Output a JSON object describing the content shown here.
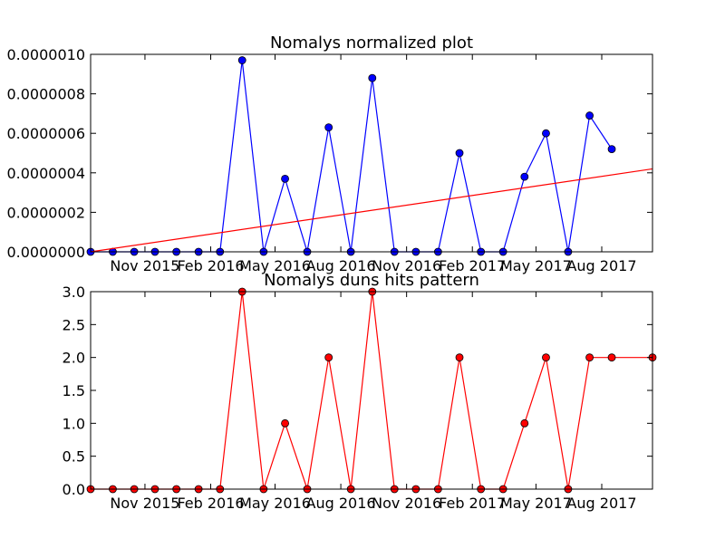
{
  "chart_data": [
    {
      "type": "line",
      "title": "Nomalys normalized plot",
      "xlabel": "",
      "ylabel": "",
      "ylim": [
        0,
        1e-06
      ],
      "yticks": [
        "0.0000000",
        "0.0000002",
        "0.0000004",
        "0.0000006",
        "0.0000008",
        "0.0000010"
      ],
      "ytick_values": [
        0,
        2e-07,
        4e-07,
        6e-07,
        8e-07,
        1e-06
      ],
      "xlim": [
        "2015-08-17",
        "2017-10-11"
      ],
      "xticks": [
        "Nov 2015",
        "Feb 2016",
        "May 2016",
        "Aug 2016",
        "Nov 2016",
        "Feb 2017",
        "May 2017",
        "Aug 2017"
      ],
      "xtick_dates": [
        "2015-11-01",
        "2016-02-01",
        "2016-05-01",
        "2016-08-01",
        "2016-11-01",
        "2017-02-01",
        "2017-05-01",
        "2017-08-01"
      ],
      "grid": false,
      "series": [
        {
          "color": "#0000ff",
          "marker": "circle",
          "x": [
            "2015-08-17",
            "2015-09-17",
            "2015-10-17",
            "2015-11-15",
            "2015-12-15",
            "2016-01-15",
            "2016-02-14",
            "2016-03-16",
            "2016-04-15",
            "2016-05-15",
            "2016-06-15",
            "2016-07-15",
            "2016-08-15",
            "2016-09-14",
            "2016-10-15",
            "2016-11-14",
            "2016-12-15",
            "2017-01-14",
            "2017-02-13",
            "2017-03-16",
            "2017-04-15",
            "2017-05-15",
            "2017-06-15",
            "2017-07-15",
            "2017-08-15"
          ],
          "values": [
            0,
            0,
            0,
            0,
            0,
            0,
            0,
            9.7e-07,
            0,
            3.7e-07,
            0,
            6.3e-07,
            0,
            8.8e-07,
            0,
            0,
            0,
            5e-07,
            0,
            0,
            3.8e-07,
            6e-07,
            0,
            6.9e-07,
            5.2e-07
          ]
        },
        {
          "color": "#ff0000",
          "marker": "none",
          "x": [
            "2015-08-17",
            "2017-10-11"
          ],
          "values": [
            0,
            4.2e-07
          ]
        }
      ]
    },
    {
      "type": "line",
      "title": "Nomalys duns hits pattern",
      "xlabel": "",
      "ylabel": "",
      "ylim": [
        0,
        3
      ],
      "yticks": [
        "0.0",
        "0.5",
        "1.0",
        "1.5",
        "2.0",
        "2.5",
        "3.0"
      ],
      "ytick_values": [
        0,
        0.5,
        1,
        1.5,
        2,
        2.5,
        3
      ],
      "xlim": [
        "2015-08-17",
        "2017-10-11"
      ],
      "xticks": [
        "Nov 2015",
        "Feb 2016",
        "May 2016",
        "Aug 2016",
        "Nov 2016",
        "Feb 2017",
        "May 2017",
        "Aug 2017"
      ],
      "xtick_dates": [
        "2015-11-01",
        "2016-02-01",
        "2016-05-01",
        "2016-08-01",
        "2016-11-01",
        "2017-02-01",
        "2017-05-01",
        "2017-08-01"
      ],
      "grid": false,
      "series": [
        {
          "color": "#ff0000",
          "marker": "circle",
          "x": [
            "2015-08-17",
            "2015-09-17",
            "2015-10-17",
            "2015-11-15",
            "2015-12-15",
            "2016-01-15",
            "2016-02-14",
            "2016-03-16",
            "2016-04-15",
            "2016-05-15",
            "2016-06-15",
            "2016-07-15",
            "2016-08-15",
            "2016-09-14",
            "2016-10-15",
            "2016-11-14",
            "2016-12-15",
            "2017-01-14",
            "2017-02-13",
            "2017-03-16",
            "2017-04-15",
            "2017-05-15",
            "2017-06-15",
            "2017-07-15",
            "2017-08-15",
            "2017-10-11"
          ],
          "values": [
            0,
            0,
            0,
            0,
            0,
            0,
            0,
            3,
            0,
            1,
            0,
            2,
            0,
            3,
            0,
            0,
            0,
            2,
            0,
            0,
            1,
            2,
            0,
            2,
            2,
            2
          ]
        }
      ]
    }
  ]
}
